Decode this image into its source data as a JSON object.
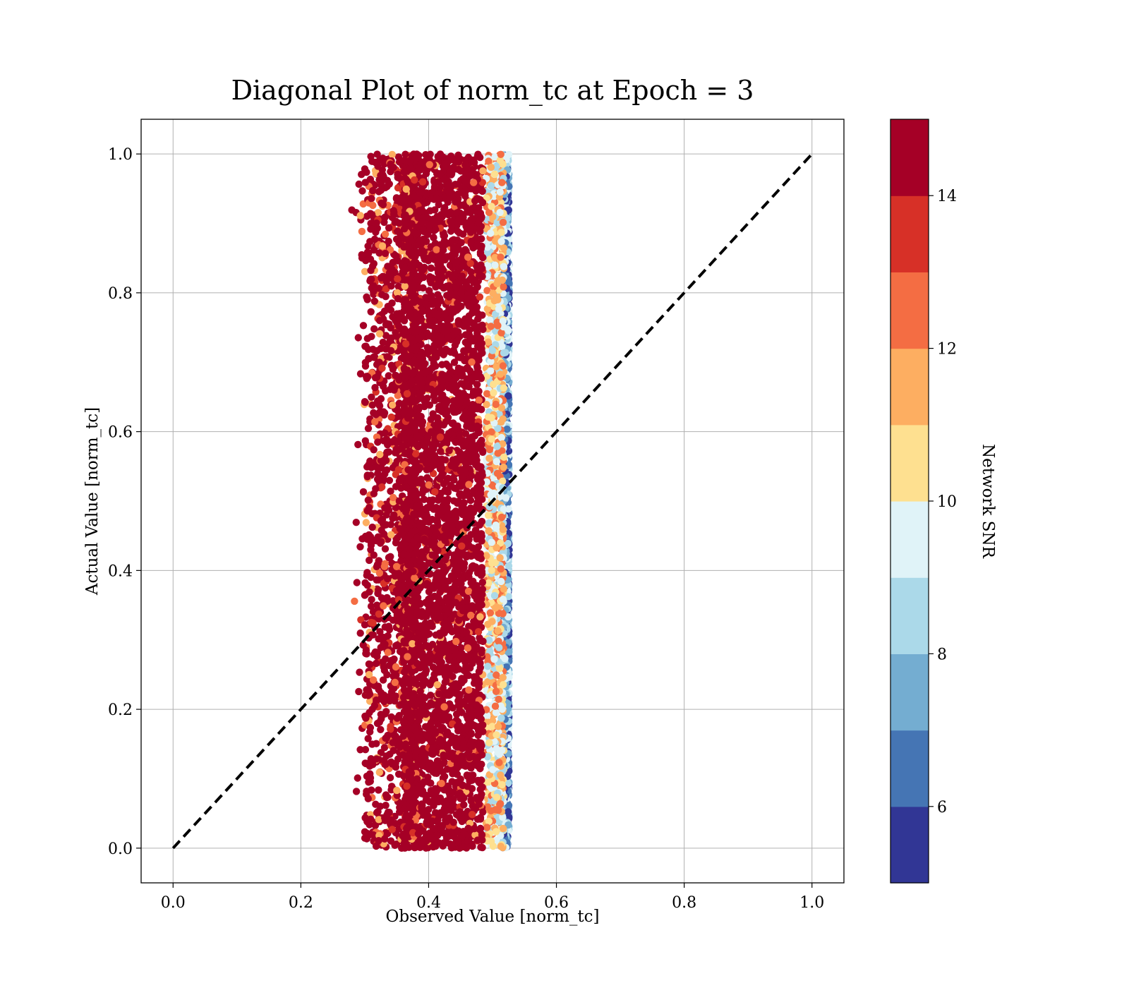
{
  "chart_data": {
    "type": "scatter",
    "title": "Diagonal Plot of norm_tc at Epoch = 3",
    "xlabel": "Observed Value [norm_tc]",
    "ylabel": "Actual Value [norm_tc]",
    "xlim": [
      -0.05,
      1.05
    ],
    "ylim": [
      -0.05,
      1.05
    ],
    "xticks": [
      "0.0",
      "0.2",
      "0.4",
      "0.6",
      "0.8",
      "1.0"
    ],
    "yticks": [
      "0.0",
      "0.2",
      "0.4",
      "0.6",
      "0.8",
      "1.0"
    ],
    "grid": true,
    "reference_line": {
      "x": [
        0.0,
        1.0
      ],
      "y": [
        0.0,
        1.0
      ],
      "style": "dashed",
      "color": "#000000"
    },
    "scatter_summary": {
      "x_core_range": [
        0.38,
        0.52
      ],
      "x_sparse_lower_bound": 0.3,
      "y_range": [
        0.0,
        1.0
      ],
      "dominant_snr": 15,
      "low_snr_x_edge": 0.52
    },
    "colorbar": {
      "label": "Network SNR",
      "range": [
        5,
        15
      ],
      "ticks": [
        "6",
        "8",
        "10",
        "12",
        "14"
      ],
      "colors": [
        "#313695",
        "#4575b4",
        "#74add1",
        "#abd9e9",
        "#e0f3f8",
        "#fee090",
        "#fdae61",
        "#f46d43",
        "#d73027",
        "#a50026"
      ]
    }
  }
}
